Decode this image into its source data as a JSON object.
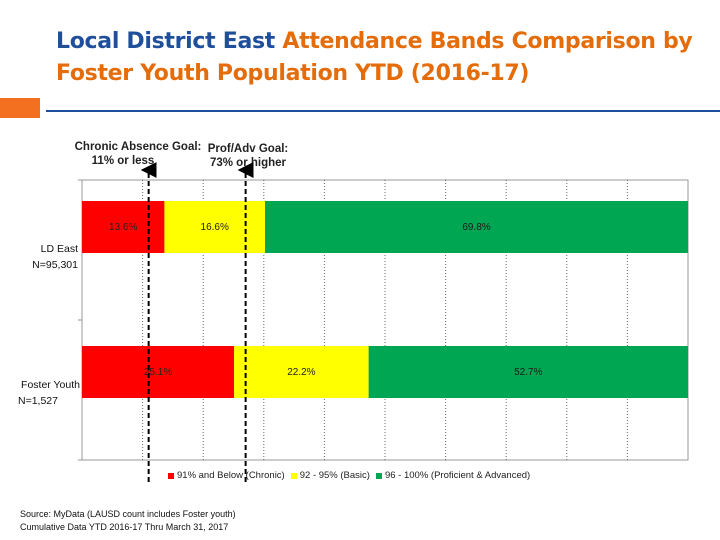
{
  "title": {
    "part1": "Local District East ",
    "part2": "Attendance Bands Comparison by",
    "part3": "Foster Youth Population YTD (2016-17)"
  },
  "goals": {
    "chronic_line1": "Chronic Absence Goal:",
    "chronic_line2": "11% or less",
    "prof_line1": "Prof/Adv Goal:",
    "prof_line2": "73% or higher"
  },
  "source": {
    "line1": "Source: MyData (LAUSD count includes Foster youth)",
    "line2": "Cumulative Data YTD 2016-17 Thru March 31, 2017"
  },
  "colors": {
    "chronic": "#ff0000",
    "basic": "#ffff00",
    "proficient": "#00a651",
    "title_dark": "#1f4e9a",
    "title_accent": "#e46c0a"
  },
  "chart_data": {
    "type": "bar",
    "orientation": "horizontal",
    "stacked": true,
    "categories": [
      {
        "line1": "LD East",
        "line2": "N=95,301"
      },
      {
        "line1": "Foster Youth",
        "line2": "N=1,527"
      }
    ],
    "series": [
      {
        "name": "91% and Below (Chronic)",
        "values": [
          13.6,
          25.1
        ],
        "labels": [
          "13.6%",
          "25.1%"
        ],
        "color": "#ff0000"
      },
      {
        "name": "92 - 95% (Basic)",
        "values": [
          16.6,
          22.2
        ],
        "labels": [
          "16.6%",
          "22.2%"
        ],
        "color": "#ffff00"
      },
      {
        "name": "96 - 100% (Proficient & Advanced)",
        "values": [
          69.8,
          52.7
        ],
        "labels": [
          "69.8%",
          "52.7%"
        ],
        "color": "#00a651"
      }
    ],
    "xlim": [
      0,
      100
    ],
    "reference_lines": [
      11,
      27
    ],
    "grid": true,
    "legend_position": "bottom"
  }
}
